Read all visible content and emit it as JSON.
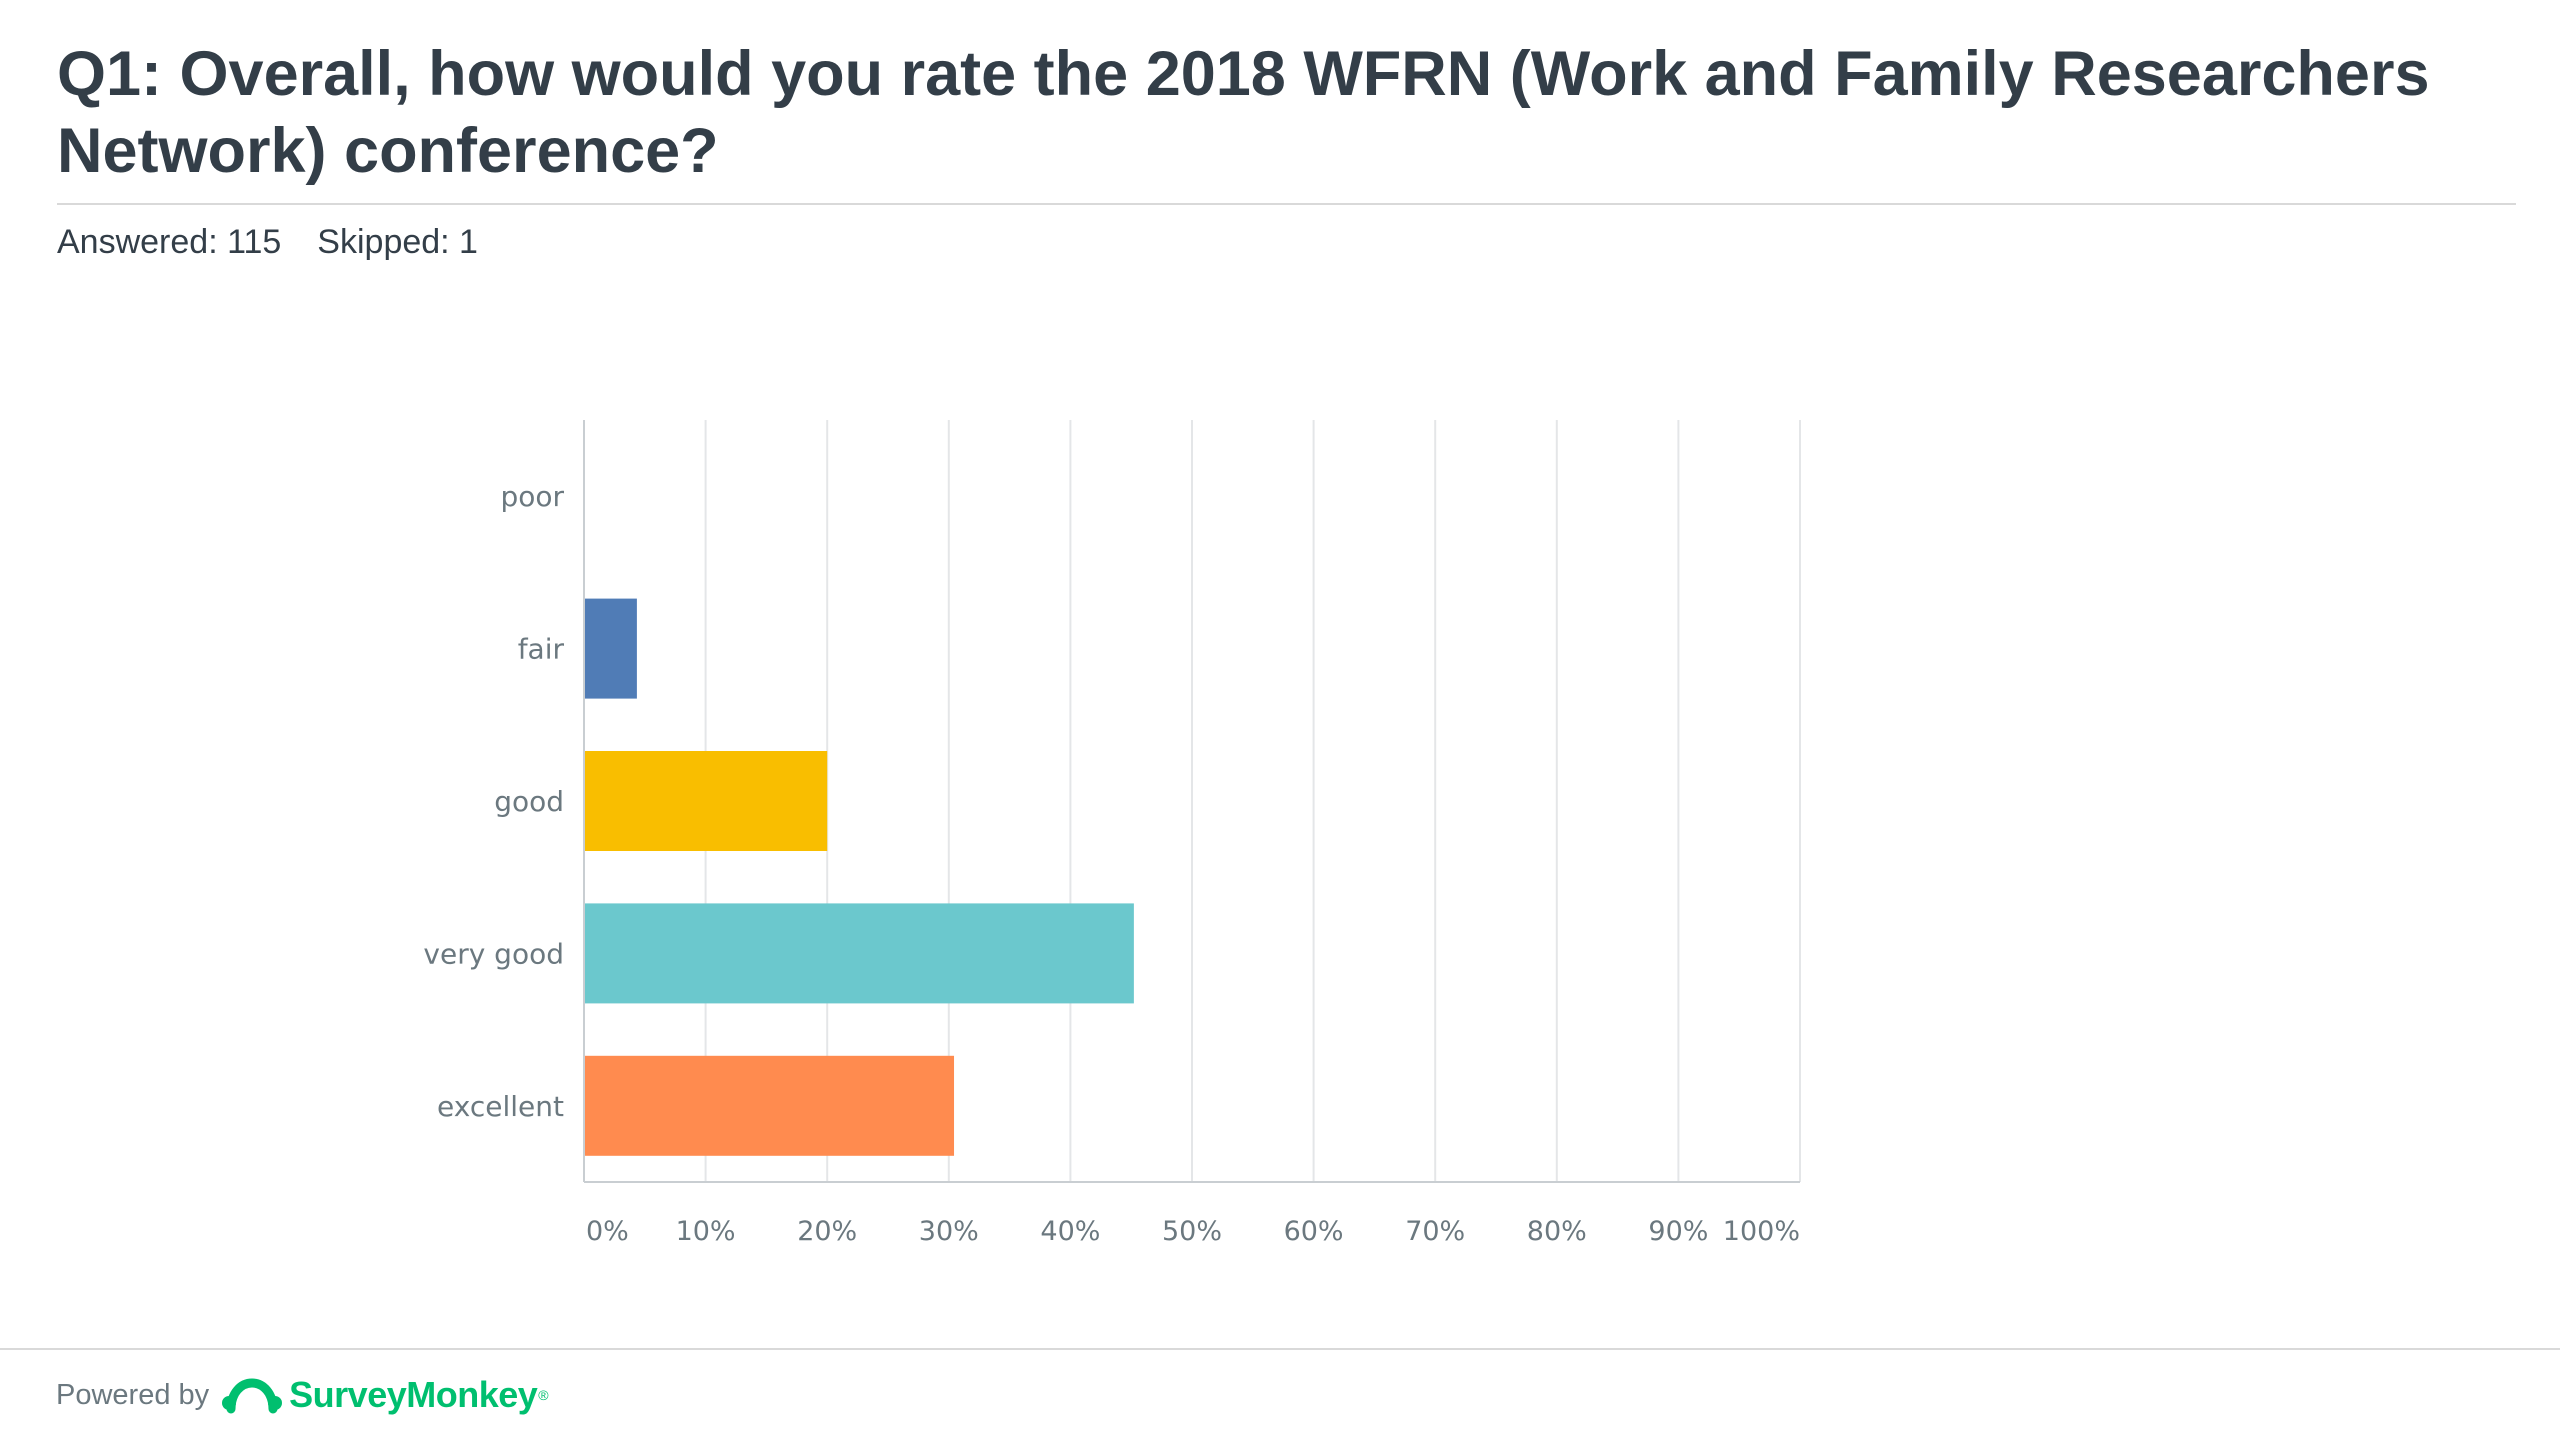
{
  "question": {
    "title": "Q1: Overall, how would you rate the 2018 WFRN (Work and Family Researchers Network) conference?",
    "answered": "Answered: 115",
    "skipped": "Skipped: 1"
  },
  "chart_data": {
    "type": "bar",
    "orientation": "horizontal",
    "categories": [
      "poor",
      "fair",
      "good",
      "very good",
      "excellent"
    ],
    "values": [
      0,
      4.35,
      20,
      45.22,
      30.43
    ],
    "value_unit": "%",
    "colors": [
      "#507cb6",
      "#507cb6",
      "#f9be00",
      "#6bc8cd",
      "#ff8b4f"
    ],
    "xlim": [
      0,
      100
    ],
    "x_ticks": [
      "0%",
      "10%",
      "20%",
      "30%",
      "40%",
      "50%",
      "60%",
      "70%",
      "80%",
      "90%",
      "100%"
    ],
    "grid": true,
    "legend": "none"
  },
  "footer": {
    "powered_by": "Powered by",
    "brand": "SurveyMonkey",
    "brand_mark": "®",
    "brand_color": "#00bf6f"
  }
}
